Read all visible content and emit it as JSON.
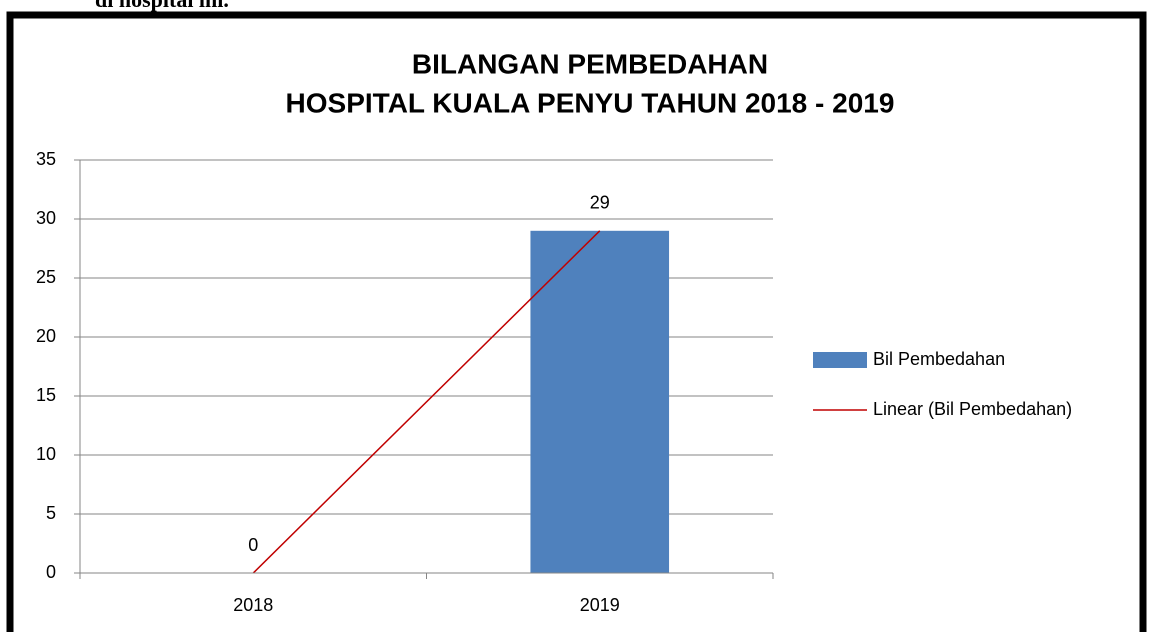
{
  "caption": "di hospital ini.",
  "chart_data": {
    "type": "bar",
    "title": [
      "BILANGAN PEMBEDAHAN",
      "HOSPITAL KUALA PENYU TAHUN 2018 - 2019"
    ],
    "categories": [
      "2018",
      "2019"
    ],
    "series": [
      {
        "name": "Bil Pembedahan",
        "color": "#4f81bd",
        "values": [
          0,
          29
        ]
      },
      {
        "name": "Linear (Bil Pembedahan)",
        "type": "line",
        "color": "#c00000",
        "values": [
          0,
          29
        ]
      }
    ],
    "ylim": [
      0,
      35
    ],
    "yticks": [
      0,
      5,
      10,
      15,
      20,
      25,
      30,
      35
    ],
    "grid": true,
    "legend": "right"
  }
}
